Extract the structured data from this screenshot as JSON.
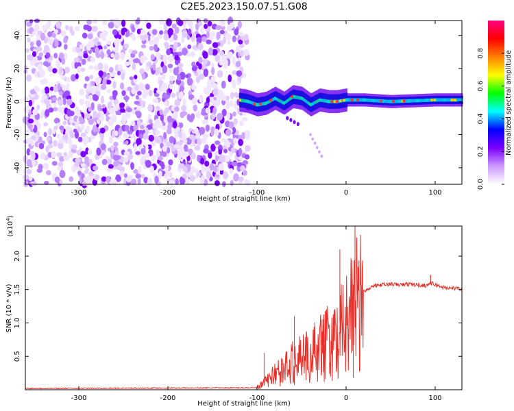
{
  "title": "C2E5.2023.150.07.51.G08",
  "chart_data": [
    {
      "type": "heatmap",
      "xlabel": "Height of straight line (km)",
      "ylabel": "Frequency (Hz)",
      "xlim": [
        -360,
        130
      ],
      "ylim": [
        -50,
        49
      ],
      "xticks": [
        -300,
        -200,
        -100,
        0,
        100
      ],
      "yticks": [
        -40,
        -20,
        0,
        20,
        40
      ],
      "signal_trace": {
        "x": [
          -120,
          -110,
          -100,
          -90,
          -80,
          -70,
          -60,
          -50,
          -40,
          -30,
          -20,
          -10,
          0,
          20,
          50,
          100,
          130
        ],
        "frequency_hz": [
          1,
          0,
          -2,
          -1,
          2,
          -1,
          3,
          2,
          -2,
          1,
          0,
          0,
          1,
          1,
          0,
          1,
          1
        ]
      },
      "noise_region_x": [
        -360,
        -110
      ],
      "colorbar": {
        "label": "Normalized spectral amplitude",
        "range": [
          0.0,
          1.0
        ],
        "ticks": [
          "0.0",
          "0.2",
          "0.4",
          "0.6",
          "0.8"
        ],
        "colors": [
          "#ffffff",
          "#cc99ff",
          "#7a00ff",
          "#0000ff",
          "#00ffff",
          "#00ff00",
          "#ffff00",
          "#ff8000",
          "#ff0000",
          "#ff0080"
        ]
      }
    },
    {
      "type": "line",
      "xlabel": "Height of straight line (km)",
      "ylabel": "SNR (10 * v/v)",
      "multiplier": "(x10",
      "multiplier_exp": "4",
      "multiplier_close": ")",
      "xlim": [
        -360,
        130
      ],
      "ylim": [
        0.0,
        2.45
      ],
      "xticks": [
        -300,
        -200,
        -100,
        0,
        100
      ],
      "yticks": [
        "0.5",
        "1.0",
        "1.5",
        "2.0"
      ],
      "color": "#e8302a",
      "series": [
        {
          "x": [
            -360,
            -100,
            -90,
            -80,
            -70,
            -60,
            -50,
            -40,
            -30,
            -20,
            -10,
            -5,
            0,
            5,
            8,
            10,
            12,
            20,
            30,
            40,
            50,
            60,
            70,
            80,
            90,
            95,
            100,
            110,
            120,
            130
          ],
          "y": [
            0.02,
            0.03,
            0.12,
            0.25,
            0.3,
            0.45,
            0.5,
            0.55,
            0.65,
            0.75,
            0.95,
            1.05,
            1.1,
            1.15,
            1.25,
            1.3,
            1.4,
            1.48,
            1.55,
            1.57,
            1.58,
            1.57,
            1.58,
            1.57,
            1.56,
            1.6,
            1.57,
            1.53,
            1.52,
            1.51
          ]
        }
      ],
      "spikes": [
        {
          "x": -92,
          "y": 0.55
        },
        {
          "x": -58,
          "y": 1.1
        },
        {
          "x": -28,
          "y": 1.05
        },
        {
          "x": -7,
          "y": 2.1
        },
        {
          "x": 8,
          "y": 0.18
        },
        {
          "x": 10,
          "y": 2.45
        },
        {
          "x": 95,
          "y": 1.72
        }
      ]
    }
  ]
}
